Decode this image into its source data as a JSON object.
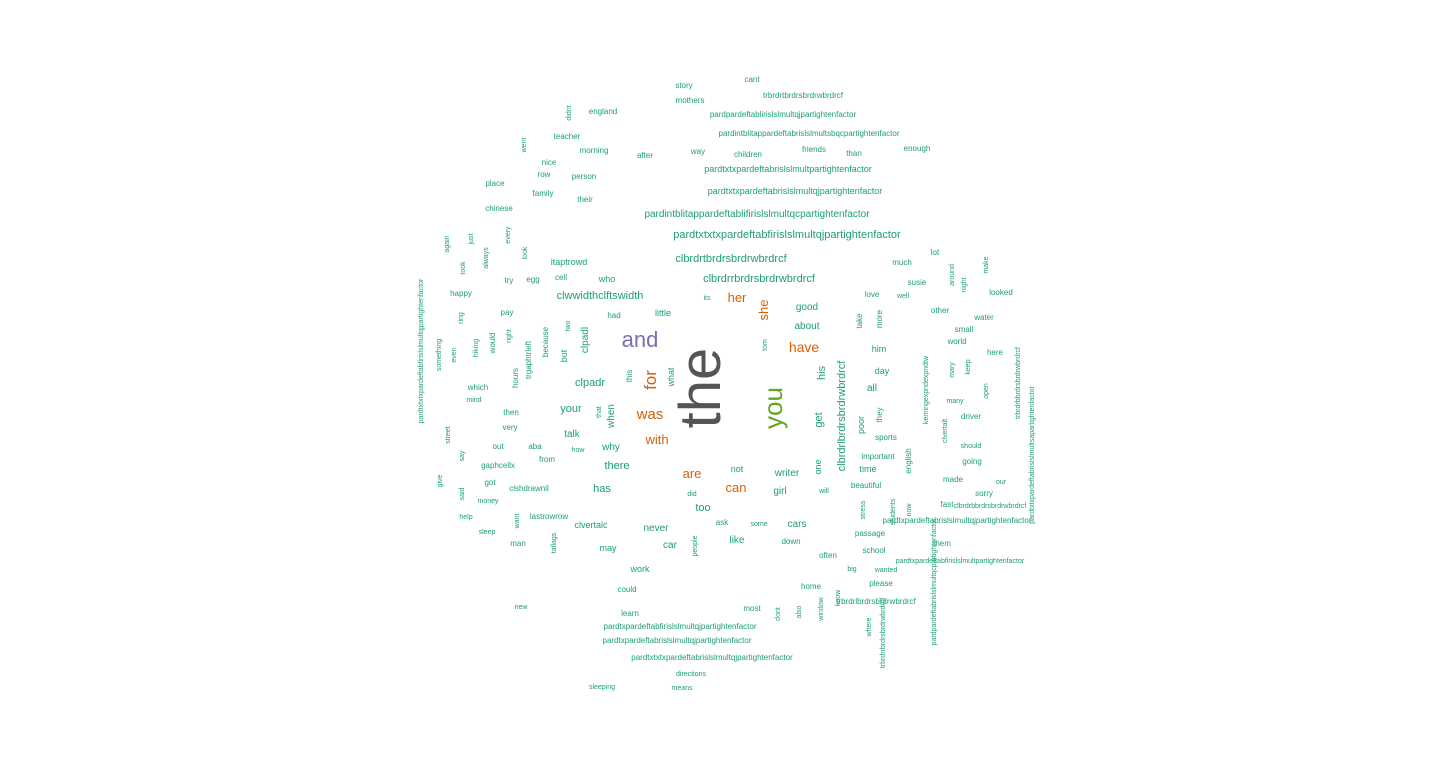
{
  "colors": {
    "tier1": "#555555",
    "tier2": "#7570b3",
    "tier3": "#66a61e",
    "tier4": "#d95f02",
    "tier5": "#1b9e77"
  },
  "words": [
    {
      "text": "the",
      "tier": "tier1"
    },
    {
      "text": "and",
      "tier": "tier2"
    },
    {
      "text": "you",
      "tier": "tier3"
    },
    {
      "text": "for",
      "tier": "tier4"
    },
    {
      "text": "was",
      "tier": "tier4"
    },
    {
      "text": "with",
      "tier": "tier4"
    },
    {
      "text": "her",
      "tier": "tier4"
    },
    {
      "text": "she",
      "tier": "tier4"
    },
    {
      "text": "have",
      "tier": "tier4"
    },
    {
      "text": "are",
      "tier": "tier4"
    },
    {
      "text": "can",
      "tier": "tier4"
    },
    {
      "text": "story",
      "tier": "tier5"
    },
    {
      "text": "cant",
      "tier": "tier5"
    },
    {
      "text": "trbrdrtbrdrsbrdrwbrdrcf",
      "tier": "tier5"
    },
    {
      "text": "mothers",
      "tier": "tier5"
    },
    {
      "text": "didnt",
      "tier": "tier5"
    },
    {
      "text": "england",
      "tier": "tier5"
    },
    {
      "text": "pardpardeftablirislslmultqjpartightenfactor",
      "tier": "tier5"
    },
    {
      "text": "pardintblitappardeftabrislslmultsbqcpartightenfactor",
      "tier": "tier5"
    },
    {
      "text": "teacher",
      "tier": "tier5"
    },
    {
      "text": "went",
      "tier": "tier5"
    },
    {
      "text": "morning",
      "tier": "tier5"
    },
    {
      "text": "after",
      "tier": "tier5"
    },
    {
      "text": "way",
      "tier": "tier5"
    },
    {
      "text": "children",
      "tier": "tier5"
    },
    {
      "text": "friends",
      "tier": "tier5"
    },
    {
      "text": "than",
      "tier": "tier5"
    },
    {
      "text": "enough",
      "tier": "tier5"
    },
    {
      "text": "nice",
      "tier": "tier5"
    },
    {
      "text": "row",
      "tier": "tier5"
    },
    {
      "text": "person",
      "tier": "tier5"
    },
    {
      "text": "pardtxtxpardeftabrislslmultpartightenfactor",
      "tier": "tier5"
    },
    {
      "text": "place",
      "tier": "tier5"
    },
    {
      "text": "family",
      "tier": "tier5"
    },
    {
      "text": "their",
      "tier": "tier5"
    },
    {
      "text": "pardtxtxpardeftabrislslmultqjpartightenfactor",
      "tier": "tier5"
    },
    {
      "text": "chinese",
      "tier": "tier5"
    },
    {
      "text": "pardintblitappardeftablifirislslmultqcpartightenfactor",
      "tier": "tier5"
    },
    {
      "text": "pardtxtxtxpardeftabfirislslmultqjpartightenfactor",
      "tier": "tier5"
    },
    {
      "text": "again",
      "tier": "tier5"
    },
    {
      "text": "just",
      "tier": "tier5"
    },
    {
      "text": "every",
      "tier": "tier5"
    },
    {
      "text": "always",
      "tier": "tier5"
    },
    {
      "text": "look",
      "tier": "tier5"
    },
    {
      "text": "clbrdrtbrdrsbrdrwbrdrcf",
      "tier": "tier5"
    },
    {
      "text": "lot",
      "tier": "tier5"
    },
    {
      "text": "took",
      "tier": "tier5"
    },
    {
      "text": "itaptrowd",
      "tier": "tier5"
    },
    {
      "text": "much",
      "tier": "tier5"
    },
    {
      "text": "around",
      "tier": "tier5"
    },
    {
      "text": "make",
      "tier": "tier5"
    },
    {
      "text": "night",
      "tier": "tier5"
    },
    {
      "text": "try",
      "tier": "tier5"
    },
    {
      "text": "egg",
      "tier": "tier5"
    },
    {
      "text": "cell",
      "tier": "tier5"
    },
    {
      "text": "who",
      "tier": "tier5"
    },
    {
      "text": "clbrdrrbrdrsbrdrwbrdrcf",
      "tier": "tier5"
    },
    {
      "text": "susie",
      "tier": "tier5"
    },
    {
      "text": "happy",
      "tier": "tier5"
    },
    {
      "text": "clwwidthclftswidth",
      "tier": "tier5"
    },
    {
      "text": "its",
      "tier": "tier5"
    },
    {
      "text": "love",
      "tier": "tier5"
    },
    {
      "text": "well",
      "tier": "tier5"
    },
    {
      "text": "looked",
      "tier": "tier5"
    },
    {
      "text": "pay",
      "tier": "tier5"
    },
    {
      "text": "had",
      "tier": "tier5"
    },
    {
      "text": "little",
      "tier": "tier5"
    },
    {
      "text": "good",
      "tier": "tier5"
    },
    {
      "text": "other",
      "tier": "tier5"
    },
    {
      "text": "water",
      "tier": "tier5"
    },
    {
      "text": "ring",
      "tier": "tier5"
    },
    {
      "text": "two",
      "tier": "tier5"
    },
    {
      "text": "take",
      "tier": "tier5"
    },
    {
      "text": "more",
      "tier": "tier5"
    },
    {
      "text": "about",
      "tier": "tier5"
    },
    {
      "text": "small",
      "tier": "tier5"
    },
    {
      "text": "because",
      "tier": "tier5"
    },
    {
      "text": "clpadl",
      "tier": "tier5"
    },
    {
      "text": "world",
      "tier": "tier5"
    },
    {
      "text": "hiking",
      "tier": "tier5"
    },
    {
      "text": "would",
      "tier": "tier5"
    },
    {
      "text": "right",
      "tier": "tier5"
    },
    {
      "text": "tom",
      "tier": "tier5"
    },
    {
      "text": "him",
      "tier": "tier5"
    },
    {
      "text": "here",
      "tier": "tier5"
    },
    {
      "text": "something",
      "tier": "tier5"
    },
    {
      "text": "even",
      "tier": "tier5"
    },
    {
      "text": "trgaphtrleft",
      "tier": "tier5"
    },
    {
      "text": "but",
      "tier": "tier5"
    },
    {
      "text": "clbrdrlbrdrsbrdrwbrdrcf",
      "tier": "tier5"
    },
    {
      "text": "kerningexpndexpndtw",
      "tier": "tier5"
    },
    {
      "text": "mary",
      "tier": "tier5"
    },
    {
      "text": "keep",
      "tier": "tier5"
    },
    {
      "text": "hours",
      "tier": "tier5"
    },
    {
      "text": "this",
      "tier": "tier5"
    },
    {
      "text": "what",
      "tier": "tier5"
    },
    {
      "text": "his",
      "tier": "tier5"
    },
    {
      "text": "day",
      "tier": "tier5"
    },
    {
      "text": "open",
      "tier": "tier5"
    },
    {
      "text": "which",
      "tier": "tier5"
    },
    {
      "text": "clpadr",
      "tier": "tier5"
    },
    {
      "text": "all",
      "tier": "tier5"
    },
    {
      "text": "mind",
      "tier": "tier5"
    },
    {
      "text": "your",
      "tier": "tier5"
    },
    {
      "text": "many",
      "tier": "tier5"
    },
    {
      "text": "trbrdrbbrdrsbrdrwbrdrcf",
      "tier": "tier5"
    },
    {
      "text": "pardtxtxpardeftabrislslmultsapartightenfactor",
      "tier": "tier5"
    },
    {
      "text": "pardtxtxtxpardeftabfirislslmultqjpartightenfactor",
      "tier": "tier5"
    },
    {
      "text": "english",
      "tier": "tier5"
    },
    {
      "text": "then",
      "tier": "tier5"
    },
    {
      "text": "that",
      "tier": "tier5"
    },
    {
      "text": "when",
      "tier": "tier5"
    },
    {
      "text": "get",
      "tier": "tier5"
    },
    {
      "text": "they",
      "tier": "tier5"
    },
    {
      "text": "poor",
      "tier": "tier5"
    },
    {
      "text": "driver",
      "tier": "tier5"
    },
    {
      "text": "very",
      "tier": "tier5"
    },
    {
      "text": "talk",
      "tier": "tier5"
    },
    {
      "text": "sports",
      "tier": "tier5"
    },
    {
      "text": "clvertalt",
      "tier": "tier5"
    },
    {
      "text": "street",
      "tier": "tier5"
    },
    {
      "text": "out",
      "tier": "tier5"
    },
    {
      "text": "aba",
      "tier": "tier5"
    },
    {
      "text": "how",
      "tier": "tier5"
    },
    {
      "text": "why",
      "tier": "tier5"
    },
    {
      "text": "should",
      "tier": "tier5"
    },
    {
      "text": "say",
      "tier": "tier5"
    },
    {
      "text": "from",
      "tier": "tier5"
    },
    {
      "text": "important",
      "tier": "tier5"
    },
    {
      "text": "going",
      "tier": "tier5"
    },
    {
      "text": "gaphcellx",
      "tier": "tier5"
    },
    {
      "text": "there",
      "tier": "tier5"
    },
    {
      "text": "not",
      "tier": "tier5"
    },
    {
      "text": "one",
      "tier": "tier5"
    },
    {
      "text": "time",
      "tier": "tier5"
    },
    {
      "text": "writer",
      "tier": "tier5"
    },
    {
      "text": "give",
      "tier": "tier5"
    },
    {
      "text": "got",
      "tier": "tier5"
    },
    {
      "text": "made",
      "tier": "tier5"
    },
    {
      "text": "our",
      "tier": "tier5"
    },
    {
      "text": "said",
      "tier": "tier5"
    },
    {
      "text": "clshdrawnil",
      "tier": "tier5"
    },
    {
      "text": "has",
      "tier": "tier5"
    },
    {
      "text": "did",
      "tier": "tier5"
    },
    {
      "text": "will",
      "tier": "tier5"
    },
    {
      "text": "girl",
      "tier": "tier5"
    },
    {
      "text": "beautiful",
      "tier": "tier5"
    },
    {
      "text": "sorry",
      "tier": "tier5"
    },
    {
      "text": "money",
      "tier": "tier5"
    },
    {
      "text": "fast",
      "tier": "tier5"
    },
    {
      "text": "clbrdrbbrdrsbrdrwbrdrcf",
      "tier": "tier5"
    },
    {
      "text": "too",
      "tier": "tier5"
    },
    {
      "text": "stress",
      "tier": "tier5"
    },
    {
      "text": "students",
      "tier": "tier5"
    },
    {
      "text": "help",
      "tier": "tier5"
    },
    {
      "text": "want",
      "tier": "tier5"
    },
    {
      "text": "lastrowrow",
      "tier": "tier5"
    },
    {
      "text": "pardtxpardeftabrislslmultqjpartightenfactor",
      "tier": "tier5"
    },
    {
      "text": "now",
      "tier": "tier5"
    },
    {
      "text": "sleep",
      "tier": "tier5"
    },
    {
      "text": "clvertalc",
      "tier": "tier5"
    },
    {
      "text": "never",
      "tier": "tier5"
    },
    {
      "text": "ask",
      "tier": "tier5"
    },
    {
      "text": "some",
      "tier": "tier5"
    },
    {
      "text": "cars",
      "tier": "tier5"
    },
    {
      "text": "passage",
      "tier": "tier5"
    },
    {
      "text": "man",
      "tier": "tier5"
    },
    {
      "text": "taflags",
      "tier": "tier5"
    },
    {
      "text": "may",
      "tier": "tier5"
    },
    {
      "text": "car",
      "tier": "tier5"
    },
    {
      "text": "people",
      "tier": "tier5"
    },
    {
      "text": "like",
      "tier": "tier5"
    },
    {
      "text": "down",
      "tier": "tier5"
    },
    {
      "text": "them",
      "tier": "tier5"
    },
    {
      "text": "school",
      "tier": "tier5"
    },
    {
      "text": "often",
      "tier": "tier5"
    },
    {
      "text": "pardtxpardeftabfirislslmultpartightenfactor",
      "tier": "tier5"
    },
    {
      "text": "work",
      "tier": "tier5"
    },
    {
      "text": "big",
      "tier": "tier5"
    },
    {
      "text": "wanted",
      "tier": "tier5"
    },
    {
      "text": "pardpardeftabrislslmultqcpartightenfactor",
      "tier": "tier5"
    },
    {
      "text": "could",
      "tier": "tier5"
    },
    {
      "text": "home",
      "tier": "tier5"
    },
    {
      "text": "please",
      "tier": "tier5"
    },
    {
      "text": "know",
      "tier": "tier5"
    },
    {
      "text": "new",
      "tier": "tier5"
    },
    {
      "text": "most",
      "tier": "tier5"
    },
    {
      "text": "dont",
      "tier": "tier5"
    },
    {
      "text": "also",
      "tier": "tier5"
    },
    {
      "text": "window",
      "tier": "tier5"
    },
    {
      "text": "trbrdrlbrdrsbrdrwbrdrcf",
      "tier": "tier5"
    },
    {
      "text": "learn",
      "tier": "tier5"
    },
    {
      "text": "where",
      "tier": "tier5"
    },
    {
      "text": "trbrdrrbrdrsbrdrwbrdrcf",
      "tier": "tier5"
    },
    {
      "text": "pardtxpardeftabfirislslmultqjpartightenfactor",
      "tier": "tier5"
    },
    {
      "text": "pardtxpardeftabrislslmultqjpartightenfactor",
      "tier": "tier5"
    },
    {
      "text": "pardtxtxtxpardeftabrislslmultqjpartightenfactor",
      "tier": "tier5"
    },
    {
      "text": "directions",
      "tier": "tier5"
    },
    {
      "text": "sleeping",
      "tier": "tier5"
    },
    {
      "text": "means",
      "tier": "tier5"
    }
  ]
}
